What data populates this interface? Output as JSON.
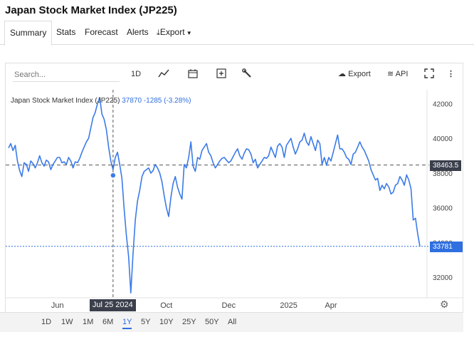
{
  "page": {
    "title": "Japan Stock Market Index (JP225)"
  },
  "tabs": [
    {
      "label": "Summary",
      "active": true
    },
    {
      "label": "Stats"
    },
    {
      "label": "Forecast"
    },
    {
      "label": "Alerts"
    },
    {
      "label": "Export"
    }
  ],
  "toolbar": {
    "search_placeholder": "Search...",
    "interval_label": "1D",
    "export_label": "Export",
    "api_label": "API"
  },
  "legend": {
    "name": "Japan Stock Market Index (JP225)",
    "value": "37870",
    "change": "-1285 (-3.28%)"
  },
  "crosshair": {
    "date_label": "Jul 25 2024",
    "price_label": "38463.5"
  },
  "last_price_label": "33781",
  "periods": [
    "1D",
    "1W",
    "1M",
    "6M",
    "1Y",
    "5Y",
    "10Y",
    "25Y",
    "50Y",
    "All"
  ],
  "active_period": "1Y",
  "colors": {
    "line": "#3b7be8",
    "badge": "#2f6fe0",
    "crosshair_badge": "#3a3f4b"
  },
  "chart_data": {
    "type": "line",
    "title": "",
    "xlabel": "",
    "ylabel": "",
    "y_ticks": [
      "42000",
      "40000",
      "38000",
      "36000",
      "34000",
      "32000"
    ],
    "ylim": [
      30900,
      42800
    ],
    "x_ticks": [
      "Jun",
      "Jul 25 2024",
      "Oct",
      "Dec",
      "2025",
      "Apr"
    ],
    "grid": false,
    "series": [
      {
        "values": [
          39450,
          39700,
          39300,
          39600,
          38700,
          38150,
          37800,
          38600,
          38500,
          38100,
          38700,
          38550,
          38300,
          38600,
          39000,
          38600,
          38400,
          38750,
          38650,
          38200,
          38500,
          38700,
          38900,
          38900,
          38600,
          38650,
          38500,
          38900,
          38700,
          38300,
          38650,
          38600,
          38850,
          39200,
          39500,
          39800,
          40000,
          40600,
          41200,
          41500,
          42000,
          42350,
          41400,
          41100,
          40500,
          39500,
          38700,
          38200,
          38900,
          39200,
          38500,
          37700,
          35900,
          34400,
          33200,
          31100,
          33400,
          35300,
          36400,
          37000,
          37800,
          38100,
          38200,
          38300,
          38000,
          38150,
          38500,
          38300,
          38000,
          37500,
          36700,
          36000,
          35500,
          36600,
          37400,
          37800,
          37200,
          36800,
          36500,
          38500,
          38300,
          38900,
          39800,
          38400,
          38100,
          38900,
          38800,
          39300,
          39500,
          39700,
          39200,
          39000,
          38600,
          38300,
          38500,
          38700,
          38850,
          38900,
          38750,
          38600,
          38700,
          38950,
          39200,
          39400,
          39000,
          38800,
          39150,
          39400,
          39350,
          39100,
          38600,
          38800,
          38300,
          38500,
          38700,
          38900,
          38850,
          39000,
          39500,
          39200,
          38900,
          39550,
          39700,
          39500,
          38900,
          39600,
          39800,
          40000,
          39500,
          39100,
          39400,
          39800,
          39900,
          40300,
          39800,
          39600,
          40100,
          39700,
          39300,
          39900,
          39700,
          38500,
          38900,
          38450,
          38900,
          38700,
          39200,
          39700,
          40200,
          39400,
          39400,
          39200,
          38900,
          38800,
          38500,
          39100,
          39200,
          39500,
          39800,
          39500,
          39300,
          39000,
          38700,
          38200,
          37900,
          37600,
          37700,
          37000,
          37300,
          37100,
          37400,
          37200,
          36800,
          36900,
          37300,
          37400,
          37800,
          37600,
          37300,
          37900,
          37600,
          37100,
          35300,
          35400,
          34500,
          33781
        ],
        "current_value": 33781,
        "crosshair_value": 37870,
        "price_line": 38463.5
      }
    ]
  }
}
